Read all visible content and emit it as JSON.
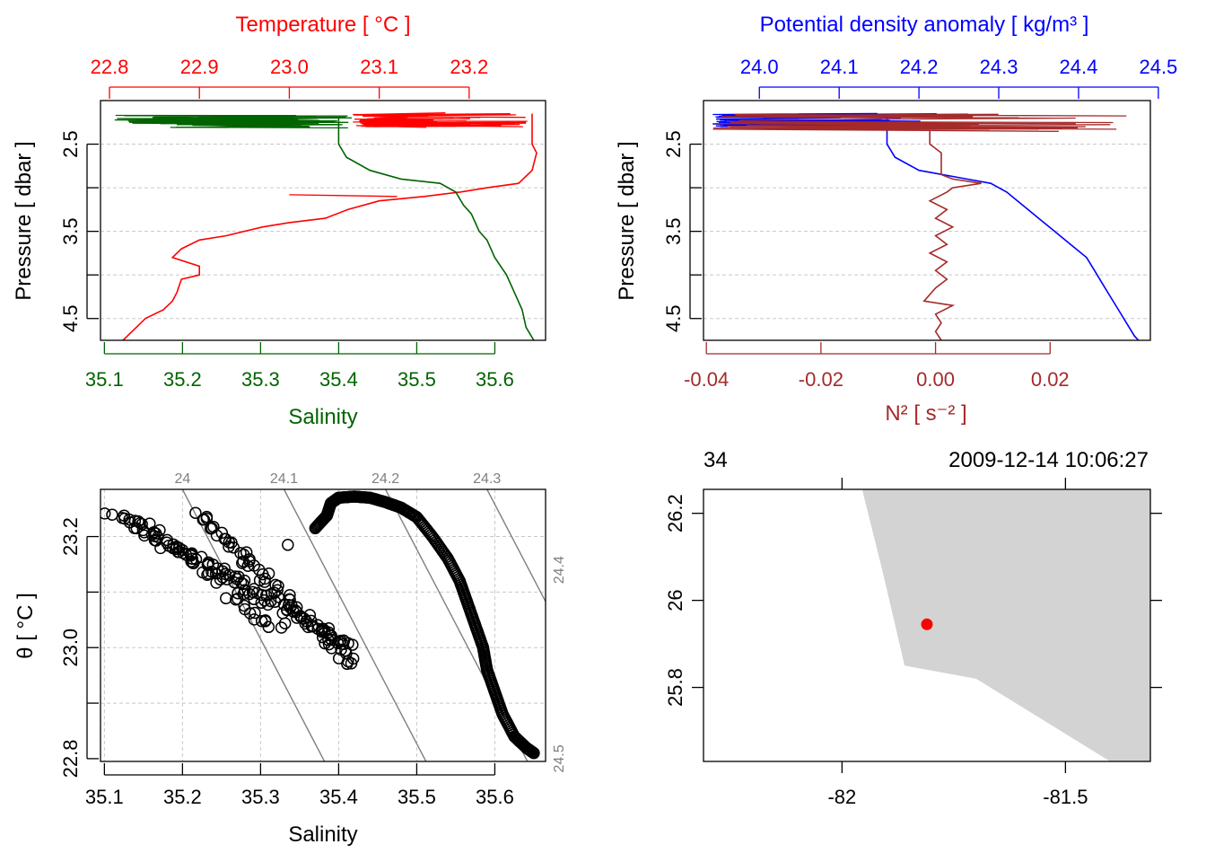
{
  "colors": {
    "temperature": "#ff0000",
    "salinity": "#006400",
    "density": "#0000ff",
    "n2": "#a52a2a",
    "grid": "#c8c8c8",
    "isopycnal": "#7f7f7f",
    "land": "#d3d3d3",
    "station": "#ff0000",
    "points": "#000000"
  },
  "chart_data": [
    {
      "id": "ts_profile",
      "type": "line",
      "y": {
        "label": "Pressure [ dbar ]",
        "range": [
          4.75,
          2.0
        ],
        "ticks": [
          4.5,
          3.5,
          2.5
        ],
        "tick_labels": [
          "4.5",
          "3.5",
          "2.5"
        ],
        "reversed": true
      },
      "x_top": {
        "label": "Temperature [ °C ]",
        "range": [
          22.79,
          23.285
        ],
        "ticks": [
          22.8,
          22.9,
          23.0,
          23.1,
          23.2
        ],
        "tick_labels": [
          "22.8",
          "22.9",
          "23.0",
          "23.1",
          "23.2"
        ]
      },
      "x_bottom": {
        "label": "Salinity",
        "range": [
          35.095,
          35.665
        ],
        "ticks": [
          35.1,
          35.2,
          35.3,
          35.4,
          35.5,
          35.6
        ],
        "tick_labels": [
          "35.1",
          "35.2",
          "35.3",
          "35.4",
          "35.5",
          "35.6"
        ]
      },
      "grid": true,
      "series": [
        {
          "name": "Temperature",
          "axis": "top",
          "points": [
            [
              23.27,
              2.15
            ],
            [
              23.27,
              2.3
            ],
            [
              23.27,
              2.5
            ],
            [
              23.275,
              2.6
            ],
            [
              23.27,
              2.8
            ],
            [
              23.255,
              2.95
            ],
            [
              23.22,
              3.0
            ],
            [
              23.19,
              3.05
            ],
            [
              23.15,
              3.1
            ],
            [
              23.1,
              3.15
            ],
            [
              23.065,
              3.25
            ],
            [
              23.04,
              3.35
            ],
            [
              23.0,
              3.4
            ],
            [
              22.97,
              3.45
            ],
            [
              22.93,
              3.55
            ],
            [
              22.9,
              3.6
            ],
            [
              22.88,
              3.7
            ],
            [
              22.87,
              3.8
            ],
            [
              22.9,
              3.9
            ],
            [
              22.9,
              4.0
            ],
            [
              22.88,
              4.05
            ],
            [
              22.875,
              4.2
            ],
            [
              22.87,
              4.3
            ],
            [
              22.86,
              4.4
            ],
            [
              22.84,
              4.5
            ],
            [
              22.83,
              4.6
            ],
            [
              22.82,
              4.7
            ],
            [
              22.815,
              4.75
            ]
          ]
        },
        {
          "name": "Salinity",
          "axis": "bottom",
          "points": [
            [
              35.4,
              2.2
            ],
            [
              35.4,
              2.5
            ],
            [
              35.41,
              2.65
            ],
            [
              35.44,
              2.8
            ],
            [
              35.48,
              2.9
            ],
            [
              35.53,
              2.95
            ],
            [
              35.55,
              3.05
            ],
            [
              35.56,
              3.2
            ],
            [
              35.57,
              3.3
            ],
            [
              35.58,
              3.5
            ],
            [
              35.59,
              3.6
            ],
            [
              35.6,
              3.8
            ],
            [
              35.615,
              4.0
            ],
            [
              35.625,
              4.2
            ],
            [
              35.635,
              4.4
            ],
            [
              35.64,
              4.6
            ],
            [
              35.65,
              4.75
            ]
          ]
        }
      ]
    },
    {
      "id": "density_profile",
      "type": "line",
      "y": {
        "label": "Pressure [ dbar ]",
        "range": [
          4.75,
          2.0
        ],
        "ticks": [
          4.5,
          3.5,
          2.5
        ],
        "tick_labels": [
          "4.5",
          "3.5",
          "2.5"
        ],
        "reversed": true
      },
      "x_top": {
        "label": "Potential density anomaly [ kg/m³ ]",
        "range": [
          23.93,
          24.49
        ],
        "ticks": [
          24.0,
          24.1,
          24.2,
          24.3,
          24.4,
          24.5
        ],
        "tick_labels": [
          "24.0",
          "24.1",
          "24.2",
          "24.3",
          "24.4",
          "24.5"
        ]
      },
      "x_bottom": {
        "label": "N² [ s⁻² ]",
        "range": [
          -0.0405,
          0.0375
        ],
        "ticks": [
          -0.04,
          -0.02,
          0.0,
          0.02
        ],
        "tick_labels": [
          "-0.04",
          "-0.02",
          "0.00",
          "0.02"
        ]
      },
      "grid": true,
      "series": [
        {
          "name": "Potential density anomaly",
          "axis": "top",
          "points": [
            [
              24.16,
              2.2
            ],
            [
              24.16,
              2.5
            ],
            [
              24.17,
              2.65
            ],
            [
              24.2,
              2.8
            ],
            [
              24.26,
              2.9
            ],
            [
              24.29,
              2.95
            ],
            [
              24.31,
              3.05
            ],
            [
              24.33,
              3.2
            ],
            [
              24.35,
              3.35
            ],
            [
              24.37,
              3.5
            ],
            [
              24.39,
              3.65
            ],
            [
              24.41,
              3.8
            ],
            [
              24.42,
              3.95
            ],
            [
              24.43,
              4.1
            ],
            [
              24.44,
              4.25
            ],
            [
              24.45,
              4.4
            ],
            [
              24.46,
              4.55
            ],
            [
              24.47,
              4.7
            ],
            [
              24.475,
              4.75
            ]
          ]
        },
        {
          "name": "N²",
          "axis": "bottom",
          "points": [
            [
              -0.001,
              2.35
            ],
            [
              -0.001,
              2.5
            ],
            [
              0.001,
              2.6
            ],
            [
              0.001,
              2.75
            ],
            [
              0.001,
              2.85
            ],
            [
              0.003,
              2.9
            ],
            [
              0.008,
              2.95
            ],
            [
              0.003,
              3.0
            ],
            [
              0.002,
              3.05
            ],
            [
              -0.001,
              3.15
            ],
            [
              0.002,
              3.25
            ],
            [
              0.0,
              3.35
            ],
            [
              0.003,
              3.45
            ],
            [
              0.0,
              3.55
            ],
            [
              0.002,
              3.65
            ],
            [
              -0.001,
              3.75
            ],
            [
              0.002,
              3.85
            ],
            [
              0.0,
              3.95
            ],
            [
              0.002,
              4.05
            ],
            [
              0.0,
              4.15
            ],
            [
              -0.002,
              4.3
            ],
            [
              0.003,
              4.35
            ],
            [
              0.0,
              4.45
            ],
            [
              0.001,
              4.55
            ],
            [
              0.0,
              4.65
            ],
            [
              0.001,
              4.75
            ]
          ]
        }
      ]
    },
    {
      "id": "ts_diagram",
      "type": "scatter",
      "x": {
        "label": "Salinity",
        "range": [
          35.095,
          35.665
        ],
        "ticks": [
          35.1,
          35.2,
          35.3,
          35.4,
          35.5,
          35.6
        ],
        "tick_labels": [
          "35.1",
          "35.2",
          "35.3",
          "35.4",
          "35.5",
          "35.6"
        ]
      },
      "y": {
        "label": "θ [ °C ]",
        "range": [
          22.795,
          23.285
        ],
        "ticks": [
          22.8,
          23.0,
          23.2
        ],
        "tick_labels": [
          "22.8",
          "23.0",
          "23.2"
        ]
      },
      "grid": true,
      "isopycnals": [
        {
          "label": "24",
          "top_x": 35.2
        },
        {
          "label": "24.1",
          "top_x": 35.33
        },
        {
          "label": "24.2",
          "top_x": 35.46
        },
        {
          "label": "24.3",
          "top_x": 35.59
        },
        {
          "label": "24.4",
          "top_x": 35.72
        },
        {
          "label": "24.5",
          "top_x": 35.85
        }
      ],
      "isopycnal_side_labels": [
        {
          "label": "24.4",
          "y": 23.14
        },
        {
          "label": "24.5",
          "y": 22.8
        }
      ],
      "clusters": [
        {
          "from": [
            35.11,
            23.245
          ],
          "to": [
            35.42,
            23.0
          ],
          "count": 90,
          "spread": 0.016
        },
        {
          "from": [
            35.22,
            23.24
          ],
          "to": [
            35.42,
            22.97
          ],
          "count": 70,
          "spread": 0.014
        },
        {
          "from": [
            35.15,
            23.22
          ],
          "to": [
            35.33,
            23.03
          ],
          "count": 40,
          "spread": 0.02
        }
      ],
      "arc_points": [
        [
          35.37,
          23.215
        ],
        [
          35.385,
          23.238
        ],
        [
          35.39,
          23.26
        ],
        [
          35.4,
          23.27
        ],
        [
          35.42,
          23.272
        ],
        [
          35.44,
          23.27
        ],
        [
          35.46,
          23.262
        ],
        [
          35.48,
          23.252
        ],
        [
          35.5,
          23.235
        ],
        [
          35.52,
          23.2
        ],
        [
          35.54,
          23.16
        ],
        [
          35.555,
          23.12
        ],
        [
          35.565,
          23.08
        ],
        [
          35.575,
          23.04
        ],
        [
          35.585,
          23.0
        ],
        [
          35.59,
          22.96
        ],
        [
          35.6,
          22.92
        ],
        [
          35.61,
          22.88
        ],
        [
          35.625,
          22.84
        ],
        [
          35.64,
          22.82
        ],
        [
          35.65,
          22.81
        ]
      ],
      "stray_points": [
        [
          35.335,
          23.185
        ],
        [
          35.29,
          23.1
        ]
      ]
    },
    {
      "id": "station_map",
      "type": "map",
      "x": {
        "range": [
          -82.31,
          -81.31
        ],
        "ticks": [
          -82.0,
          -81.5
        ],
        "tick_labels": [
          "-82",
          "-81.5"
        ]
      },
      "y": {
        "range": [
          25.63,
          26.255
        ],
        "ticks": [
          26.2,
          26.0,
          25.8
        ],
        "tick_labels": [
          "26.2",
          "26",
          "25.8"
        ]
      },
      "top_left_label": "34",
      "top_right_label": "2009-12-14 10:06:27",
      "land_polygon": [
        [
          -81.955,
          26.255
        ],
        [
          -81.31,
          26.255
        ],
        [
          -81.31,
          25.63
        ],
        [
          -81.4,
          25.63
        ],
        [
          -81.7,
          25.82
        ],
        [
          -81.86,
          25.85
        ],
        [
          -81.91,
          26.07
        ]
      ],
      "station": {
        "lon": -81.81,
        "lat": 25.945
      }
    }
  ]
}
